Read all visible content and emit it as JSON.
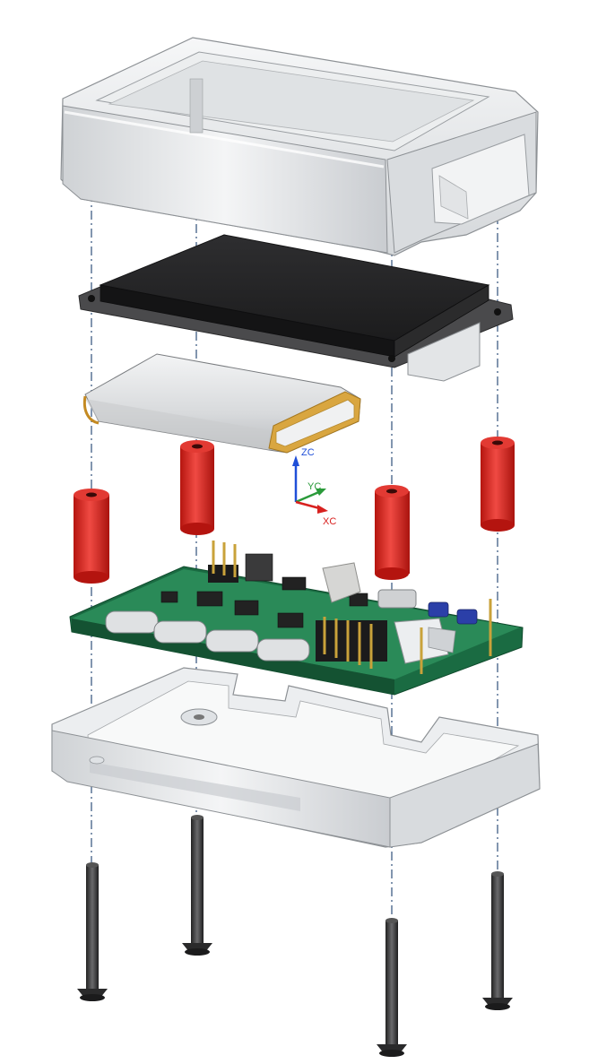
{
  "axes": {
    "z_label": "ZC",
    "y_label": "YC",
    "x_label": "XC"
  },
  "colors": {
    "enclosure": "#e6e8ea",
    "enclosure_shadow": "#b9bcbf",
    "display": "#2b2b2d",
    "battery": "#dcdedf",
    "battery_trim": "#d4a037",
    "standoff": "#d8211f",
    "pcb": "#1f7a4c",
    "screw": "#3a3a3c",
    "centerline": "#2f4f7a",
    "axis_z": "#1f4fd8",
    "axis_y": "#2a9a3a",
    "axis_x": "#d8211f"
  },
  "parts": {
    "top_cover": "top-enclosure",
    "display": "display-module",
    "battery": "battery-pack",
    "standoffs": "standoff-spacers",
    "pcb": "main-pcb",
    "bottom_case": "bottom-enclosure",
    "screws": "mounting-screws"
  }
}
